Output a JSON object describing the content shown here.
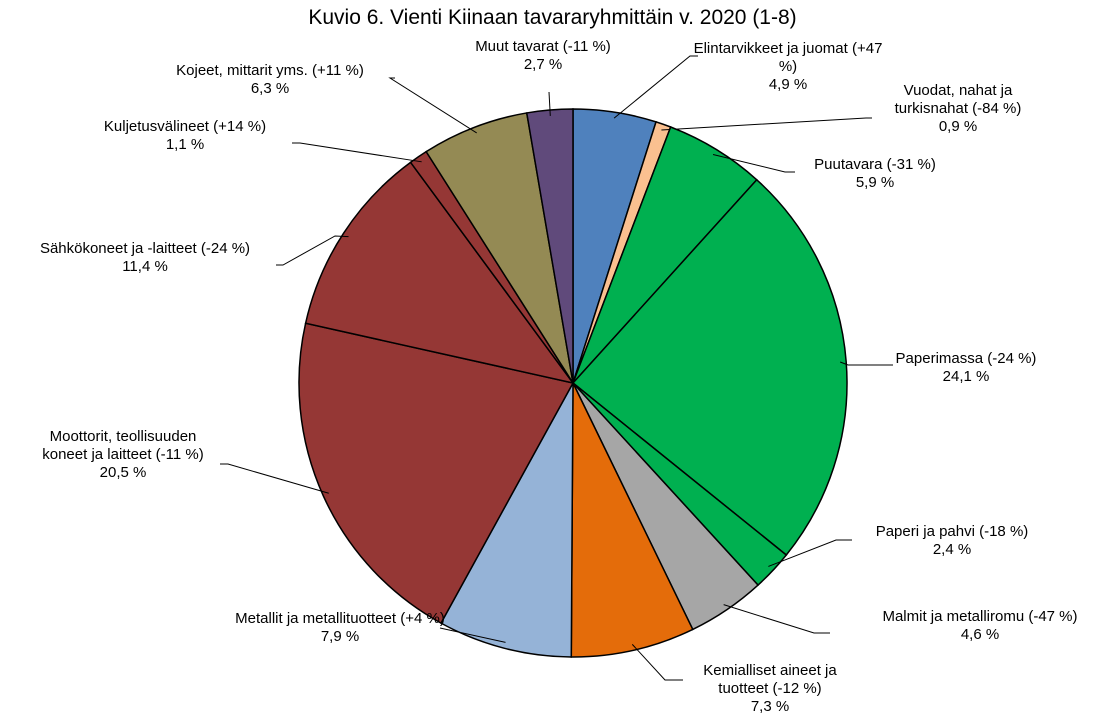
{
  "chart_data": {
    "type": "pie",
    "title": "Kuvio 6. Vienti Kiinaan tavararyhmittäin v. 2020 (1-8)",
    "categories": [
      "Elintarvikkeet ja juomat (+47 %)",
      "Vuodat, nahat ja turkisnahat (-84 %)",
      "Puutavara (-31 %)",
      "Paperimassa (-24 %)",
      "Paperi ja pahvi (-18 %)",
      "Malmit ja metalliromu (-47 %)",
      "Kemialliset aineet ja tuotteet (-12 %)",
      "Metallit ja metallituotteet (+4 %)",
      "Moottorit, teollisuuden koneet ja laitteet (-11 %)",
      "Sähkökoneet ja -laitteet (-24 %)",
      "Kuljetusvälineet (+14 %)",
      "Kojeet, mittarit yms. (+11 %)",
      "Muut tavarat (-11 %)"
    ],
    "values": [
      4.9,
      0.9,
      5.9,
      24.1,
      2.4,
      4.6,
      7.3,
      7.9,
      20.5,
      11.4,
      1.1,
      6.3,
      2.7
    ],
    "value_labels": [
      "4,9 %",
      "0,9 %",
      "5,9 %",
      "24,1 %",
      "2,4 %",
      "4,6 %",
      "7,3 %",
      "7,9 %",
      "20,5 %",
      "11,4 %",
      "1,1 %",
      "6,3 %",
      "2,7 %"
    ],
    "colors": [
      "#4f81bd",
      "#fac090",
      "#00b050",
      "#00b050",
      "#00b050",
      "#a6a6a6",
      "#e46c0a",
      "#95b3d7",
      "#953735",
      "#953735",
      "#953735",
      "#948a54",
      "#604a7b"
    ]
  }
}
